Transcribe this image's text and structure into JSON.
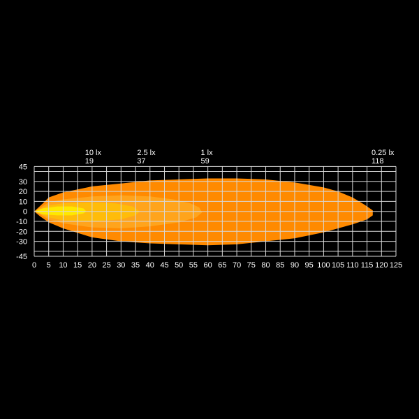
{
  "chart_data": {
    "type": "area",
    "title": "",
    "xlabel": "",
    "ylabel": "",
    "xlim": [
      0,
      125
    ],
    "ylim": [
      -45,
      45
    ],
    "grid": true,
    "background": "#000000",
    "x_ticks": [
      0,
      5,
      10,
      15,
      20,
      25,
      30,
      35,
      40,
      45,
      50,
      55,
      60,
      65,
      70,
      75,
      80,
      85,
      90,
      95,
      100,
      105,
      110,
      115,
      120,
      125
    ],
    "y_ticks": [
      45,
      30,
      20,
      10,
      0,
      -10,
      -20,
      -30,
      -45
    ],
    "y_gridlines": [
      45,
      40,
      30,
      20,
      10,
      0,
      -10,
      -20,
      -30,
      -40,
      -45
    ],
    "isolux_labels": [
      {
        "lux": "10 lx",
        "distance": "19",
        "x": 19
      },
      {
        "lux": "2.5 lx",
        "distance": "37",
        "x": 37
      },
      {
        "lux": "1 lx",
        "distance": "59",
        "x": 59
      },
      {
        "lux": "0.25 lx",
        "distance": "118",
        "x": 118
      }
    ],
    "contours": [
      {
        "lux": 0.25,
        "color": "#ff8a00",
        "points": [
          [
            0,
            0
          ],
          [
            3,
            8
          ],
          [
            5,
            14
          ],
          [
            10,
            19
          ],
          [
            20,
            25
          ],
          [
            30,
            28
          ],
          [
            40,
            31
          ],
          [
            50,
            32
          ],
          [
            60,
            33
          ],
          [
            70,
            33
          ],
          [
            80,
            32
          ],
          [
            90,
            29
          ],
          [
            100,
            24
          ],
          [
            105,
            20
          ],
          [
            110,
            14
          ],
          [
            114,
            7
          ],
          [
            117,
            1
          ],
          [
            117,
            -4
          ],
          [
            115,
            -8
          ],
          [
            110,
            -13
          ],
          [
            105,
            -17
          ],
          [
            100,
            -21
          ],
          [
            95,
            -24
          ],
          [
            90,
            -27
          ],
          [
            80,
            -30
          ],
          [
            70,
            -33
          ],
          [
            60,
            -34
          ],
          [
            50,
            -33
          ],
          [
            40,
            -32
          ],
          [
            30,
            -30
          ],
          [
            20,
            -26
          ],
          [
            10,
            -17
          ],
          [
            5,
            -11
          ],
          [
            2,
            -5
          ]
        ]
      },
      {
        "lux": 1,
        "color": "#ffa41c",
        "points": [
          [
            0,
            0
          ],
          [
            5,
            9
          ],
          [
            10,
            12
          ],
          [
            20,
            15
          ],
          [
            30,
            16
          ],
          [
            40,
            15
          ],
          [
            48,
            12
          ],
          [
            54,
            8
          ],
          [
            57,
            4
          ],
          [
            58,
            -1
          ],
          [
            56,
            -6
          ],
          [
            50,
            -11
          ],
          [
            40,
            -15
          ],
          [
            30,
            -17
          ],
          [
            20,
            -16
          ],
          [
            10,
            -12
          ],
          [
            5,
            -8
          ],
          [
            2,
            -3
          ]
        ]
      },
      {
        "lux": 2.5,
        "color": "#ffbc0a",
        "points": [
          [
            0,
            0
          ],
          [
            5,
            6
          ],
          [
            10,
            8
          ],
          [
            20,
            9
          ],
          [
            28,
            8
          ],
          [
            34,
            5
          ],
          [
            36.5,
            0
          ],
          [
            35,
            -4
          ],
          [
            30,
            -8
          ],
          [
            20,
            -10
          ],
          [
            10,
            -9
          ],
          [
            5,
            -6
          ],
          [
            2,
            -2
          ]
        ]
      },
      {
        "lux": 10,
        "color": "#ffe800",
        "points": [
          [
            0,
            0
          ],
          [
            3,
            3
          ],
          [
            8,
            5
          ],
          [
            13,
            5
          ],
          [
            17,
            3
          ],
          [
            18,
            0
          ],
          [
            17,
            -2
          ],
          [
            13,
            -4
          ],
          [
            8,
            -4
          ],
          [
            3,
            -3
          ]
        ]
      }
    ]
  }
}
